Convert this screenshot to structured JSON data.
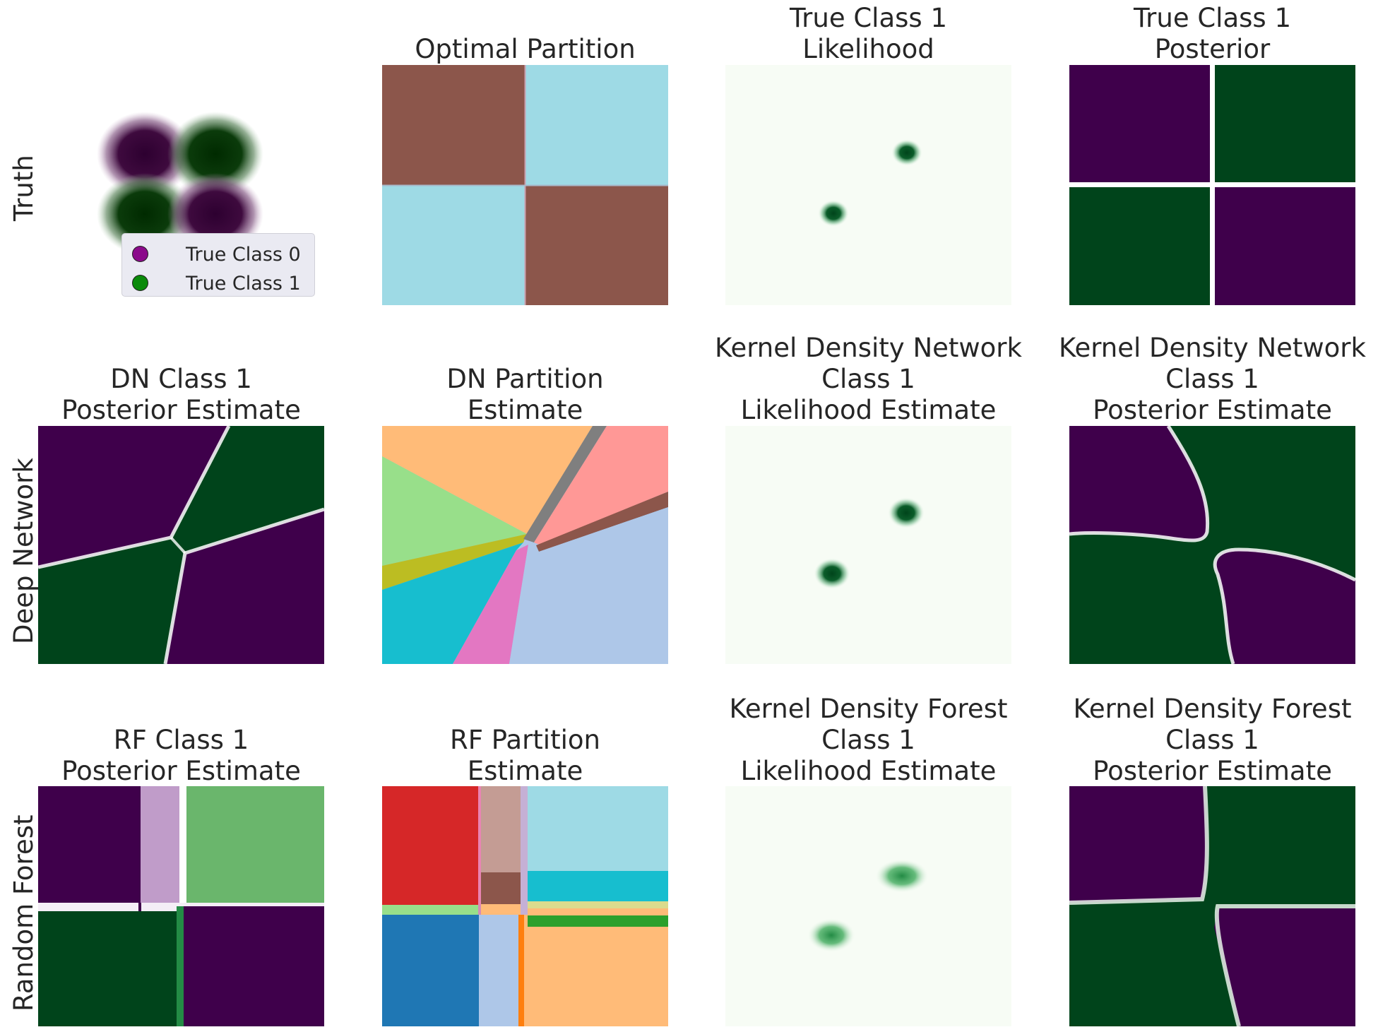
{
  "row_labels": {
    "truth": "Truth",
    "deep_network": "Deep Network",
    "random_forest": "Random Forest"
  },
  "titles": {
    "optimal_partition": "Optimal Partition",
    "true_likelihood": "True Class 1\nLikelihood",
    "true_posterior": "True Class 1\nPosterior",
    "dn_posterior": "DN Class 1\nPosterior Estimate",
    "dn_partition": "DN Partition\nEstimate",
    "kdn_likelihood": "Kernel Density Network\nClass 1\nLikelihood Estimate",
    "kdn_posterior": "Kernel Density Network\nClass 1\nPosterior Estimate",
    "rf_posterior": "RF Class 1\nPosterior Estimate",
    "rf_partition": "RF Partition\nEstimate",
    "kdf_likelihood": "Kernel Density Forest\nClass 1\nLikelihood Estimate",
    "kdf_posterior": "Kernel Density Forest\nClass 1\nPosterior Estimate"
  },
  "legend": {
    "class0": "True Class 0",
    "class1": "True Class 1"
  },
  "colors": {
    "class0": "#8b0a8b",
    "class1": "#0a8a0a",
    "post_purple": "#3f004b",
    "post_green": "#00441b",
    "brown": "#8c564b",
    "cyan": "#9edae5"
  },
  "chart_data": [
    {
      "type": "scatter",
      "title": "",
      "series": [
        {
          "name": "True Class 0",
          "centers": [
            [
              -1,
              1
            ],
            [
              1,
              -1
            ]
          ]
        },
        {
          "name": "True Class 1",
          "centers": [
            [
              1,
              1
            ],
            [
              -1,
              -1
            ]
          ]
        }
      ]
    },
    {
      "type": "heatmap",
      "title": "Optimal Partition",
      "cells": [
        [
          "brown",
          "cyan"
        ],
        [
          "cyan",
          "brown"
        ]
      ]
    },
    {
      "type": "heatmap",
      "title": "True Class 1 Likelihood",
      "peaks": [
        [
          0.63,
          0.36
        ],
        [
          0.38,
          0.62
        ]
      ]
    },
    {
      "type": "heatmap",
      "title": "True Class 1 Posterior",
      "cells": [
        [
          "purple",
          "green"
        ],
        [
          "green",
          "purple"
        ]
      ]
    },
    {
      "type": "heatmap",
      "title": "DN Class 1 Posterior Estimate"
    },
    {
      "type": "heatmap",
      "title": "DN Partition Estimate"
    },
    {
      "type": "heatmap",
      "title": "Kernel Density Network Class 1 Likelihood Estimate",
      "peaks": [
        [
          0.6,
          0.36
        ],
        [
          0.35,
          0.62
        ]
      ]
    },
    {
      "type": "heatmap",
      "title": "Kernel Density Network Class 1 Posterior Estimate"
    },
    {
      "type": "heatmap",
      "title": "RF Class 1 Posterior Estimate"
    },
    {
      "type": "heatmap",
      "title": "RF Partition Estimate"
    },
    {
      "type": "heatmap",
      "title": "Kernel Density Forest Class 1 Likelihood Estimate",
      "peaks": [
        [
          0.6,
          0.37
        ],
        [
          0.38,
          0.62
        ]
      ]
    },
    {
      "type": "heatmap",
      "title": "Kernel Density Forest Class 1 Posterior Estimate"
    }
  ]
}
